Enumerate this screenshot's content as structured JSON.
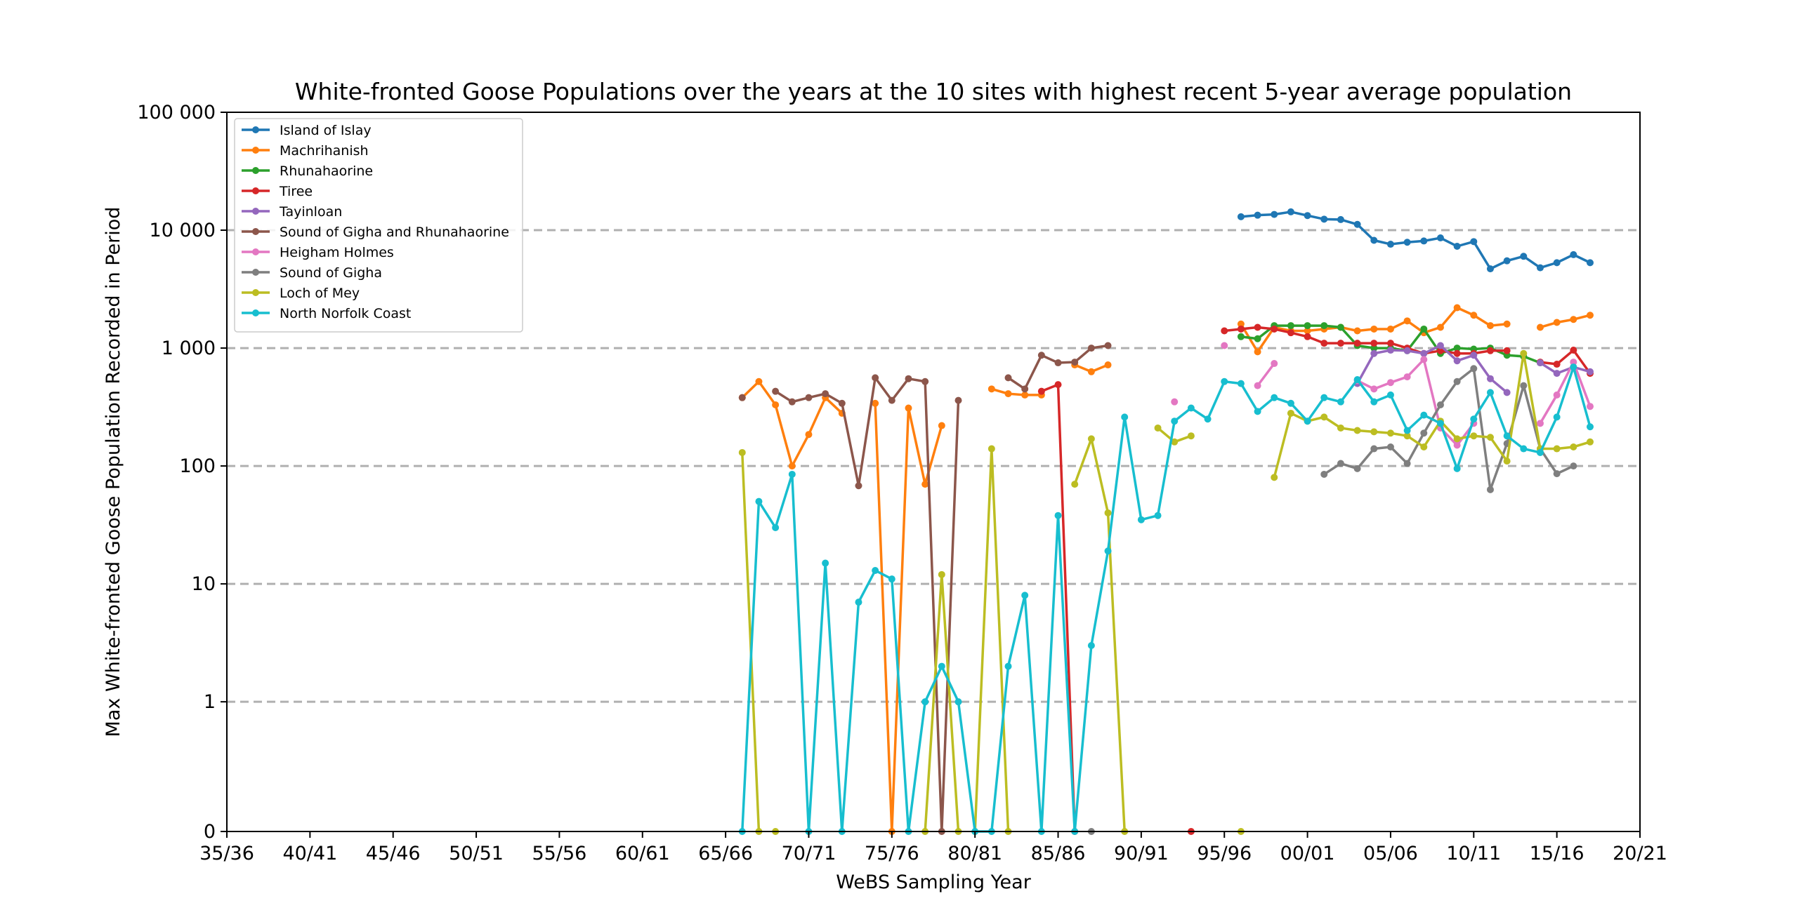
{
  "chart_data": {
    "type": "line",
    "title": "White-fronted Goose Populations over the years at the 10 sites with highest recent 5-year average population",
    "xlabel": "WeBS Sampling Year",
    "ylabel": "Max White-fronted Goose Population Recorded in Period",
    "x_scale": "season year (e.g. 1995 = 95/96)",
    "y_scale": "symlog",
    "xlim": [
      1935,
      2020
    ],
    "ylim": [
      0,
      100000
    ],
    "x_ticks": [
      "35/36",
      "40/41",
      "45/46",
      "50/51",
      "55/56",
      "60/61",
      "65/66",
      "70/71",
      "75/76",
      "80/81",
      "85/86",
      "90/91",
      "95/96",
      "00/01",
      "05/06",
      "10/11",
      "15/16",
      "20/21"
    ],
    "y_ticks": [
      "0",
      "1",
      "10",
      "100",
      "1 000",
      "10 000",
      "100 000"
    ],
    "grid": "horizontal dashed",
    "legend_position": "top-left",
    "series": [
      {
        "name": "Island of Islay",
        "color": "#1f77b4",
        "points": [
          [
            1996,
            13000
          ],
          [
            1997,
            13400
          ],
          [
            1998,
            13600
          ],
          [
            1999,
            14300
          ],
          [
            2000,
            13300
          ],
          [
            2001,
            12400
          ],
          [
            2002,
            12300
          ],
          [
            2003,
            11200
          ],
          [
            2004,
            8200
          ],
          [
            2005,
            7600
          ],
          [
            2006,
            7900
          ],
          [
            2007,
            8100
          ],
          [
            2008,
            8600
          ],
          [
            2009,
            7300
          ],
          [
            2010,
            8000
          ],
          [
            2011,
            4700
          ],
          [
            2012,
            5500
          ],
          [
            2013,
            6000
          ],
          [
            2014,
            4800
          ],
          [
            2015,
            5300
          ],
          [
            2016,
            6200
          ],
          [
            2017,
            5300
          ]
        ]
      },
      {
        "name": "Machrihanish",
        "color": "#ff7f0e",
        "points": [
          [
            1966,
            380
          ],
          [
            1967,
            520
          ],
          [
            1968,
            330
          ],
          [
            1969,
            100
          ],
          [
            1970,
            185
          ],
          [
            1971,
            380
          ],
          [
            1972,
            280
          ],
          null,
          [
            1974,
            340
          ],
          [
            1975,
            0
          ],
          [
            1976,
            310
          ],
          [
            1977,
            70
          ],
          [
            1978,
            220
          ],
          null,
          [
            1981,
            450
          ],
          [
            1982,
            410
          ],
          [
            1983,
            400
          ],
          [
            1984,
            400
          ],
          null,
          [
            1986,
            720
          ],
          [
            1987,
            630
          ],
          [
            1988,
            720
          ],
          null,
          [
            1996,
            1600
          ],
          [
            1997,
            930
          ],
          [
            1998,
            1500
          ],
          [
            1999,
            1400
          ],
          [
            2000,
            1400
          ],
          [
            2001,
            1450
          ],
          [
            2002,
            1500
          ],
          [
            2003,
            1400
          ],
          [
            2004,
            1450
          ],
          [
            2005,
            1450
          ],
          [
            2006,
            1700
          ],
          [
            2007,
            1350
          ],
          [
            2008,
            1500
          ],
          [
            2009,
            2200
          ],
          [
            2010,
            1900
          ],
          [
            2011,
            1550
          ],
          [
            2012,
            1600
          ],
          null,
          [
            2014,
            1500
          ],
          [
            2015,
            1650
          ],
          [
            2016,
            1750
          ],
          [
            2017,
            1900
          ]
        ]
      },
      {
        "name": "Rhunahaorine",
        "color": "#2ca02c",
        "points": [
          [
            1996,
            1250
          ],
          [
            1997,
            1200
          ],
          [
            1998,
            1550
          ],
          [
            1999,
            1550
          ],
          [
            2000,
            1550
          ],
          [
            2001,
            1550
          ],
          [
            2002,
            1500
          ],
          [
            2003,
            1050
          ],
          [
            2004,
            1000
          ],
          [
            2005,
            1000
          ],
          [
            2006,
            950
          ],
          [
            2007,
            1450
          ],
          [
            2008,
            900
          ],
          [
            2009,
            1000
          ],
          [
            2010,
            980
          ],
          [
            2011,
            1000
          ],
          [
            2012,
            870
          ],
          [
            2013,
            850
          ],
          [
            2014,
            750
          ]
        ]
      },
      {
        "name": "Tiree",
        "color": "#d62728",
        "points": [
          [
            1984,
            430
          ],
          [
            1985,
            490
          ],
          [
            1986,
            0
          ],
          null,
          [
            1993,
            0
          ],
          null,
          [
            1995,
            1400
          ],
          [
            1996,
            1450
          ],
          [
            1997,
            1500
          ],
          [
            1998,
            1450
          ],
          [
            1999,
            1350
          ],
          [
            2000,
            1250
          ],
          [
            2001,
            1100
          ],
          [
            2002,
            1100
          ],
          [
            2003,
            1100
          ],
          [
            2004,
            1100
          ],
          [
            2005,
            1100
          ],
          [
            2006,
            1000
          ],
          [
            2007,
            900
          ],
          [
            2008,
            950
          ],
          [
            2009,
            900
          ],
          [
            2010,
            900
          ],
          [
            2011,
            950
          ],
          [
            2012,
            950
          ],
          null,
          [
            2014,
            760
          ],
          [
            2015,
            730
          ],
          [
            2016,
            960
          ],
          [
            2017,
            610
          ]
        ]
      },
      {
        "name": "Tayinloan",
        "color": "#9467bd",
        "points": [
          [
            2003,
            500
          ],
          [
            2004,
            900
          ],
          [
            2005,
            960
          ],
          [
            2006,
            950
          ],
          [
            2007,
            900
          ],
          [
            2008,
            1050
          ],
          [
            2009,
            780
          ],
          [
            2010,
            870
          ],
          [
            2011,
            550
          ],
          [
            2012,
            420
          ],
          null,
          [
            2014,
            750
          ],
          [
            2015,
            610
          ],
          [
            2016,
            690
          ],
          [
            2017,
            630
          ]
        ]
      },
      {
        "name": "Sound of Gigha and Rhunahaorine",
        "color": "#8c564b",
        "points": [
          [
            1966,
            380
          ],
          [
            1967,
            null
          ],
          [
            1968,
            430
          ],
          [
            1969,
            350
          ],
          [
            1970,
            380
          ],
          [
            1971,
            410
          ],
          [
            1972,
            340
          ],
          [
            1973,
            68
          ],
          [
            1974,
            560
          ],
          [
            1975,
            360
          ],
          [
            1976,
            550
          ],
          [
            1977,
            520
          ],
          [
            1978,
            0
          ],
          [
            1979,
            360
          ],
          null,
          [
            1982,
            560
          ],
          [
            1983,
            450
          ],
          [
            1984,
            870
          ],
          [
            1985,
            750
          ],
          [
            1986,
            760
          ],
          [
            1987,
            1000
          ],
          [
            1988,
            1050
          ]
        ]
      },
      {
        "name": "Heigham Holmes",
        "color": "#e377c2",
        "points": [
          [
            1992,
            350
          ],
          null,
          [
            1995,
            1050
          ],
          null,
          [
            1997,
            480
          ],
          [
            1998,
            740
          ],
          null,
          [
            2003,
            530
          ],
          [
            2004,
            450
          ],
          [
            2005,
            510
          ],
          [
            2006,
            570
          ],
          [
            2007,
            800
          ],
          [
            2008,
            210
          ],
          [
            2009,
            150
          ],
          [
            2010,
            230
          ],
          null,
          [
            2014,
            230
          ],
          [
            2015,
            400
          ],
          [
            2016,
            760
          ],
          [
            2017,
            320
          ]
        ]
      },
      {
        "name": "Sound of Gigha",
        "color": "#7f7f7f",
        "points": [
          [
            1987,
            0
          ],
          null,
          [
            2001,
            85
          ],
          [
            2002,
            105
          ],
          [
            2003,
            95
          ],
          [
            2004,
            140
          ],
          [
            2005,
            145
          ],
          [
            2006,
            105
          ],
          [
            2007,
            190
          ],
          [
            2008,
            330
          ],
          [
            2009,
            520
          ],
          [
            2010,
            670
          ],
          [
            2011,
            63
          ],
          [
            2012,
            155
          ],
          [
            2013,
            480
          ],
          [
            2014,
            140
          ],
          [
            2015,
            86
          ],
          [
            2016,
            100
          ]
        ]
      },
      {
        "name": "Loch of Mey",
        "color": "#bcbd22",
        "points": [
          [
            1966,
            130
          ],
          [
            1967,
            0
          ],
          null,
          [
            1968,
            0
          ],
          null,
          [
            1977,
            0
          ],
          [
            1978,
            12
          ],
          [
            1979,
            0
          ],
          null,
          [
            1980,
            0
          ],
          [
            1981,
            140
          ],
          [
            1982,
            0
          ],
          null,
          [
            1986,
            70
          ],
          [
            1987,
            170
          ],
          [
            1988,
            40
          ],
          [
            1989,
            0
          ],
          null,
          [
            1991,
            210
          ],
          [
            1992,
            160
          ],
          [
            1993,
            180
          ],
          null,
          [
            1996,
            0
          ],
          null,
          [
            1998,
            80
          ],
          [
            1999,
            280
          ],
          [
            2000,
            240
          ],
          [
            2001,
            260
          ],
          [
            2002,
            210
          ],
          [
            2003,
            200
          ],
          [
            2004,
            195
          ],
          [
            2005,
            190
          ],
          [
            2006,
            180
          ],
          [
            2007,
            145
          ],
          [
            2008,
            240
          ],
          [
            2009,
            170
          ],
          [
            2010,
            180
          ],
          [
            2011,
            175
          ],
          [
            2012,
            110
          ],
          [
            2013,
            900
          ],
          [
            2014,
            140
          ],
          [
            2015,
            140
          ],
          [
            2016,
            145
          ],
          [
            2017,
            160
          ]
        ]
      },
      {
        "name": "North Norfolk Coast",
        "color": "#17becf",
        "points": [
          [
            1966,
            0
          ],
          [
            1967,
            50
          ],
          [
            1968,
            30
          ],
          [
            1969,
            85
          ],
          [
            1970,
            0
          ],
          [
            1971,
            15
          ],
          [
            1972,
            0
          ],
          [
            1973,
            7
          ],
          [
            1974,
            13
          ],
          [
            1975,
            11
          ],
          [
            1976,
            0
          ],
          [
            1977,
            1
          ],
          [
            1978,
            2
          ],
          [
            1979,
            1
          ],
          [
            1980,
            0
          ],
          [
            1981,
            0
          ],
          [
            1982,
            2
          ],
          [
            1983,
            8
          ],
          [
            1984,
            0
          ],
          [
            1985,
            38
          ],
          [
            1986,
            0
          ],
          [
            1987,
            3
          ],
          [
            1988,
            19
          ],
          [
            1989,
            260
          ],
          [
            1990,
            35
          ],
          [
            1991,
            38
          ],
          [
            1992,
            240
          ],
          [
            1993,
            310
          ],
          [
            1994,
            250
          ],
          [
            1995,
            520
          ],
          [
            1996,
            500
          ],
          [
            1997,
            290
          ],
          [
            1998,
            380
          ],
          [
            1999,
            340
          ],
          [
            2000,
            240
          ],
          [
            2001,
            380
          ],
          [
            2002,
            350
          ],
          [
            2003,
            540
          ],
          [
            2004,
            350
          ],
          [
            2005,
            400
          ],
          [
            2006,
            200
          ],
          [
            2007,
            270
          ],
          [
            2008,
            230
          ],
          [
            2009,
            95
          ],
          [
            2010,
            250
          ],
          [
            2011,
            420
          ],
          [
            2012,
            180
          ],
          [
            2013,
            140
          ],
          [
            2014,
            130
          ],
          [
            2015,
            260
          ],
          [
            2016,
            690
          ],
          [
            2017,
            215
          ]
        ]
      }
    ]
  }
}
